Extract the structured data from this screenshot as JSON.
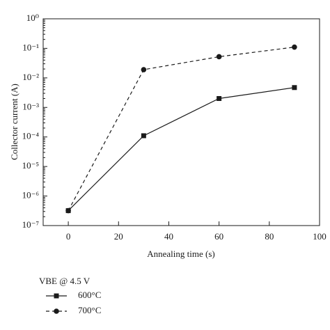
{
  "chart_data": {
    "type": "line",
    "y_label": "Collector current (A)",
    "x_label": "Annealing time (s)",
    "legend_title": "VBE @ 4.5 V",
    "series": [
      {
        "name": "600°C",
        "color": "#1a1a1a",
        "marker": "square",
        "dash": false,
        "x": [
          0,
          30,
          60,
          90
        ],
        "values": [
          3.2e-07,
          0.00011,
          0.002,
          0.0047
        ]
      },
      {
        "name": "700°C",
        "color": "#1a1a1a",
        "marker": "circle",
        "dash": true,
        "x": [
          0,
          30,
          60,
          90
        ],
        "values": [
          3.2e-07,
          0.019,
          0.052,
          0.11
        ]
      }
    ],
    "xlim": [
      -10,
      100
    ],
    "xticks": [
      0,
      20,
      40,
      60,
      80,
      100
    ],
    "ylim": [
      1e-07,
      1
    ],
    "ylog": true,
    "yticks": [
      {
        "value": 1e-07,
        "label": "10⁻⁷"
      },
      {
        "value": 1e-06,
        "label": "10⁻⁶"
      },
      {
        "value": 1e-05,
        "label": "10⁻⁵"
      },
      {
        "value": 0.0001,
        "label": "10⁻⁴"
      },
      {
        "value": 0.001,
        "label": "10⁻³"
      },
      {
        "value": 0.01,
        "label": "10⁻²"
      },
      {
        "value": 0.1,
        "label": "10⁻¹"
      },
      {
        "value": 1,
        "label": "10⁰"
      }
    ],
    "grid": false
  }
}
